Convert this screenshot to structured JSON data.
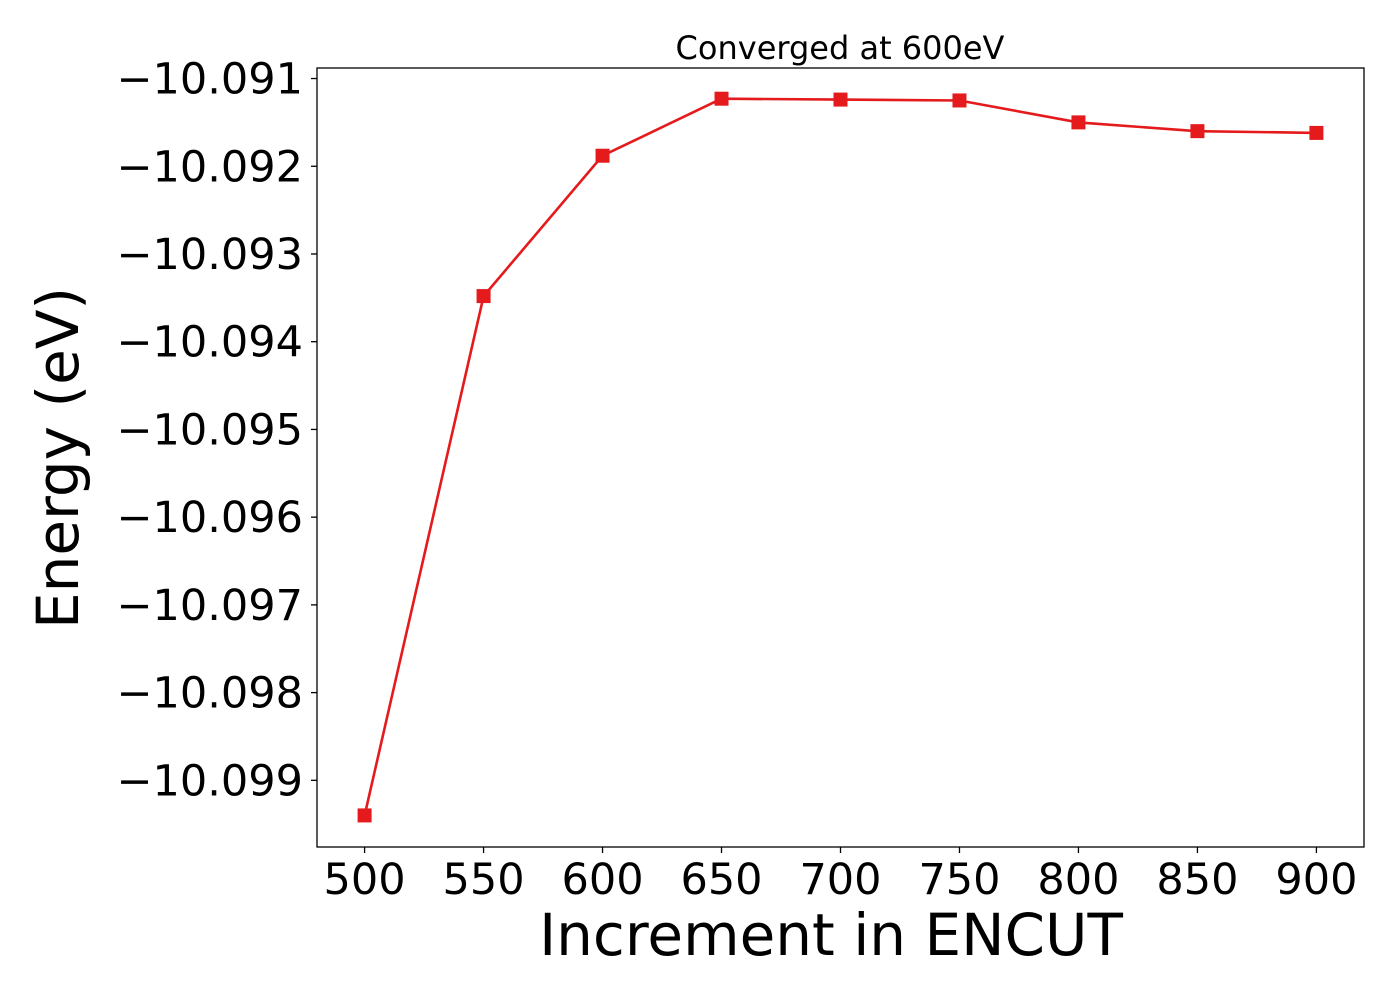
{
  "chart_data": {
    "type": "line",
    "title": "Converged at 600eV",
    "xlabel": "Increment in ENCUT",
    "ylabel": "Energy (eV)",
    "x": [
      500,
      550,
      600,
      650,
      700,
      750,
      800,
      850,
      900
    ],
    "series": [
      {
        "values": [
          -10.0994,
          -10.09348,
          -10.09188,
          -10.09123,
          -10.09124,
          -10.09125,
          -10.0915,
          -10.0916,
          -10.09162
        ],
        "color": "#e41a1c",
        "marker": "square"
      }
    ],
    "xlim": [
      480,
      920
    ],
    "ylim": [
      -10.09976,
      -10.09088
    ],
    "xticks": [
      500,
      550,
      600,
      650,
      700,
      750,
      800,
      850,
      900
    ],
    "xtick_labels": [
      "500",
      "550",
      "600",
      "650",
      "700",
      "750",
      "800",
      "850",
      "900"
    ],
    "yticks": [
      -10.091,
      -10.092,
      -10.093,
      -10.094,
      -10.095,
      -10.096,
      -10.097,
      -10.098,
      -10.099
    ],
    "ytick_labels": [
      "−10.091",
      "−10.092",
      "−10.093",
      "−10.094",
      "−10.095",
      "−10.096",
      "−10.097",
      "−10.098",
      "−10.099"
    ],
    "grid": false,
    "legend": false
  }
}
